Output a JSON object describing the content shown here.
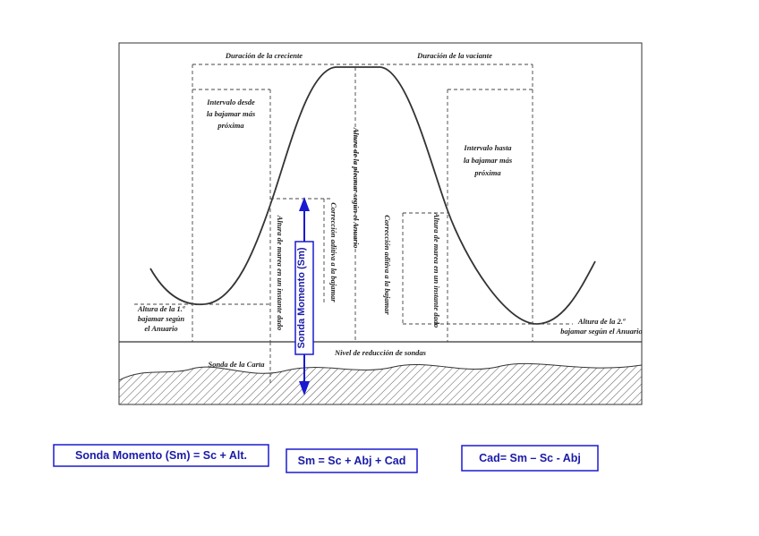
{
  "diagram": {
    "labels": [
      {
        "lines": [
          "Duración de la creciente"
        ]
      },
      {
        "lines": [
          "Duración de la vaciante"
        ]
      },
      {
        "lines": [
          "Intervalo desde",
          "la bajamar más",
          "próxima"
        ]
      },
      {
        "lines": [
          "Intervalo hasta",
          "la bajamar más",
          "próxima"
        ]
      },
      {
        "lines": [
          "Altura de la pleamar según el Anuario"
        ]
      },
      {
        "lines": [
          "Corrección aditiva a la bajamar"
        ]
      },
      {
        "lines": [
          "Corrección aditiva a la bajamar"
        ]
      },
      {
        "lines": [
          "Altura de marea en un instante dado"
        ]
      },
      {
        "lines": [
          "Altura de marea en un instante dado"
        ]
      },
      {
        "lines": [
          "Altura de la 1.ª",
          "bajamar según",
          "el Anuario"
        ]
      },
      {
        "lines": [
          "Altura de la 2.ª",
          "bajamar según el Anuario"
        ]
      },
      {
        "lines": [
          "Nivel de reducción de sondas"
        ]
      },
      {
        "lines": [
          "Sonda de la Carta"
        ]
      },
      {
        "lines": [
          "Sonda Momento (Sm)"
        ]
      }
    ],
    "formulas": [
      "Sonda Momento (Sm) = Sc + Alt.",
      "Sm = Sc + Abj + Cad",
      "Cad= Sm – Sc - Abj"
    ]
  }
}
